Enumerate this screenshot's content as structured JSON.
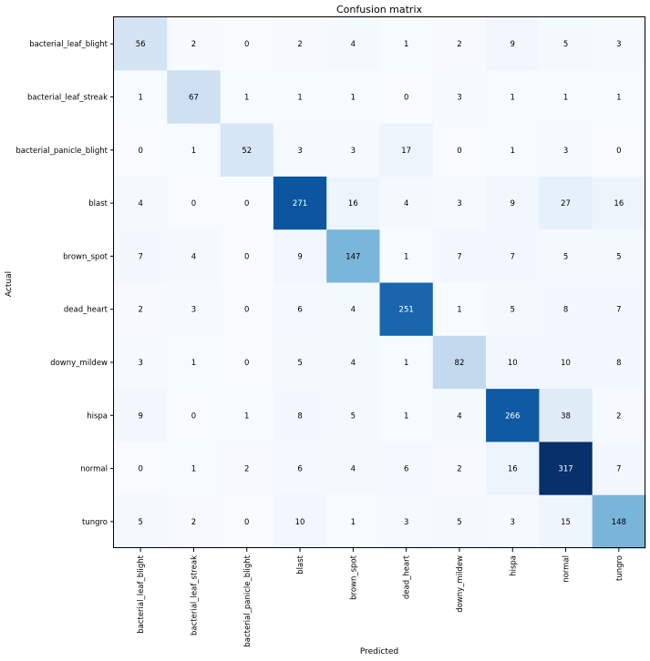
{
  "chart_data": {
    "type": "heatmap",
    "title": "Confusion matrix",
    "xlabel": "Predicted",
    "ylabel": "Actual",
    "colormap": "Blues",
    "colormap_stops": [
      "#f7fbff",
      "#deebf7",
      "#c6dbef",
      "#9ecae1",
      "#6baed6",
      "#4292c6",
      "#2171b5",
      "#08519c",
      "#08306b"
    ],
    "value_range": [
      0,
      317
    ],
    "text_color_dark": "#000000",
    "text_color_light": "#ffffff",
    "x_categories": [
      "bacterial_leaf_blight",
      "bacterial_leaf_streak",
      "bacterial_panicle_blight",
      "blast",
      "brown_spot",
      "dead_heart",
      "downy_mildew",
      "hispa",
      "normal",
      "tungro"
    ],
    "y_categories": [
      "bacterial_leaf_blight",
      "bacterial_leaf_streak",
      "bacterial_panicle_blight",
      "blast",
      "brown_spot",
      "dead_heart",
      "downy_mildew",
      "hispa",
      "normal",
      "tungro"
    ],
    "matrix": [
      [
        56,
        2,
        0,
        2,
        4,
        1,
        2,
        9,
        5,
        3
      ],
      [
        1,
        67,
        1,
        1,
        1,
        0,
        3,
        1,
        1,
        1
      ],
      [
        0,
        1,
        52,
        3,
        3,
        17,
        0,
        1,
        3,
        0
      ],
      [
        4,
        0,
        0,
        271,
        16,
        4,
        3,
        9,
        27,
        16
      ],
      [
        7,
        4,
        0,
        9,
        147,
        1,
        7,
        7,
        5,
        5
      ],
      [
        2,
        3,
        0,
        6,
        4,
        251,
        1,
        5,
        8,
        7
      ],
      [
        3,
        1,
        0,
        5,
        4,
        1,
        82,
        10,
        10,
        8
      ],
      [
        9,
        0,
        1,
        8,
        5,
        1,
        4,
        266,
        38,
        2
      ],
      [
        0,
        1,
        2,
        6,
        4,
        6,
        2,
        16,
        317,
        7
      ],
      [
        5,
        2,
        0,
        10,
        1,
        3,
        5,
        3,
        15,
        148
      ]
    ]
  }
}
